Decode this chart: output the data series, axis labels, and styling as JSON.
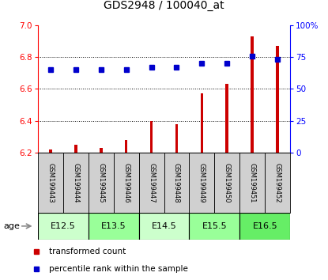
{
  "title": "GDS2948 / 100040_at",
  "samples": [
    "GSM199443",
    "GSM199444",
    "GSM199445",
    "GSM199446",
    "GSM199447",
    "GSM199448",
    "GSM199449",
    "GSM199450",
    "GSM199451",
    "GSM199452"
  ],
  "bar_values": [
    6.22,
    6.25,
    6.23,
    6.28,
    6.4,
    6.38,
    6.57,
    6.63,
    6.93,
    6.87
  ],
  "percentile_values": [
    65,
    65,
    65,
    65,
    67,
    67,
    70,
    70,
    76,
    73
  ],
  "ylim_left": [
    6.2,
    7.0
  ],
  "ylim_right": [
    0,
    100
  ],
  "yticks_left": [
    6.2,
    6.4,
    6.6,
    6.8,
    7.0
  ],
  "yticks_right": [
    0,
    25,
    50,
    75,
    100
  ],
  "ytick_labels_right": [
    "0",
    "25",
    "50",
    "75",
    "100%"
  ],
  "bar_color": "#cc0000",
  "dot_color": "#0000cc",
  "sample_box_color": "#d0d0d0",
  "age_groups": [
    {
      "label": "E12.5",
      "start": 0,
      "end": 2,
      "color": "#ccffcc"
    },
    {
      "label": "E13.5",
      "start": 2,
      "end": 4,
      "color": "#99ff99"
    },
    {
      "label": "E14.5",
      "start": 4,
      "end": 6,
      "color": "#ccffcc"
    },
    {
      "label": "E15.5",
      "start": 6,
      "end": 8,
      "color": "#99ff99"
    },
    {
      "label": "E16.5",
      "start": 8,
      "end": 10,
      "color": "#66ee66"
    }
  ],
  "legend_items": [
    {
      "label": "transformed count",
      "color": "#cc0000"
    },
    {
      "label": "percentile rank within the sample",
      "color": "#0000cc"
    }
  ],
  "bar_width": 0.12,
  "dot_markersize": 5
}
